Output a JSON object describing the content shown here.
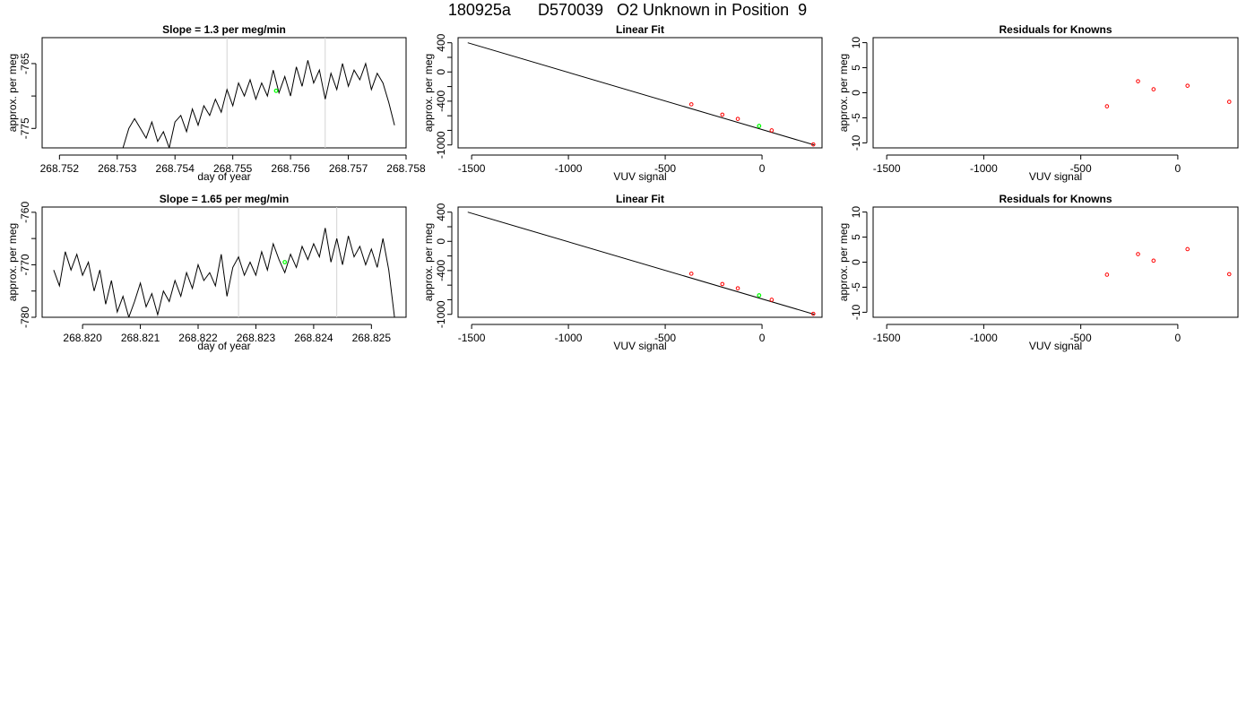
{
  "header": {
    "title": "180925a      D570039   O2 Unknown in Position  9"
  },
  "colors": {
    "line": "#000000",
    "known_points": "#ff0000",
    "unknown_point": "#00ff00",
    "marker_lines": "#d3d3d3"
  },
  "chart_data": [
    {
      "type": "line",
      "title": "Slope =  1.3  per meg/min",
      "xlabel": "day of year",
      "ylabel": "approx. per meg",
      "xlim": [
        268.7517,
        268.758
      ],
      "ylim": [
        -778,
        -761
      ],
      "x_ticks": [
        268.752,
        268.753,
        268.754,
        268.755,
        268.756,
        268.757,
        268.758
      ],
      "x_tick_labels": [
        "268.752",
        "268.753",
        "268.754",
        "268.755",
        "268.756",
        "268.757",
        "268.758"
      ],
      "y_ticks": [
        -765,
        -775
      ],
      "y_tick_labels": [
        "-765",
        "-775"
      ],
      "y_minor_ticks": [
        -770
      ],
      "vertical_markers": [
        268.7549,
        268.7566
      ],
      "series": [
        {
          "x": [
            268.7531,
            268.7532,
            268.7533,
            268.7534,
            268.7535,
            268.7536,
            268.7537,
            268.7538,
            268.7539,
            268.754,
            268.7541,
            268.7542,
            268.7543,
            268.7544,
            268.7545,
            268.7546,
            268.7547,
            268.7548,
            268.7549,
            268.755,
            268.7551,
            268.7552,
            268.7553,
            268.7554,
            268.7555,
            268.7556,
            268.7557,
            268.7558,
            268.7559,
            268.756,
            268.7561,
            268.7562,
            268.7563,
            268.7564,
            268.7565,
            268.7566,
            268.7567,
            268.7568,
            268.7569,
            268.757,
            268.7571,
            268.7572,
            268.7573,
            268.7574,
            268.7575,
            268.7576,
            268.7577,
            268.7578
          ],
          "y": [
            -778,
            -775,
            -773.5,
            -775,
            -776.5,
            -774,
            -777,
            -775.5,
            -778,
            -774,
            -773,
            -775.5,
            -772,
            -774.5,
            -771.5,
            -773,
            -770.5,
            -772.5,
            -769,
            -771.5,
            -768,
            -770,
            -767.5,
            -770.5,
            -768,
            -770,
            -766,
            -769.5,
            -767,
            -770,
            -765.5,
            -768.5,
            -764.5,
            -768,
            -766,
            -770.5,
            -766.5,
            -769,
            -765,
            -768.5,
            -766,
            -767.5,
            -765,
            -769,
            -766.5,
            -768,
            -771,
            -774.5
          ]
        }
      ],
      "unknown_point": {
        "x": 268.75575,
        "y": -769.2
      }
    },
    {
      "type": "scatter",
      "title": "Linear Fit",
      "xlabel": "VUV signal",
      "ylabel": "approx. per meg",
      "xlim": [
        -1570,
        310
      ],
      "ylim": [
        -1040,
        470
      ],
      "x_ticks": [
        -1500,
        -1000,
        -500,
        0
      ],
      "x_tick_labels": [
        "-1500",
        "-1000",
        "-500",
        "0"
      ],
      "y_ticks": [
        400,
        0,
        -400,
        -1000
      ],
      "y_tick_labels": [
        "400",
        "0",
        "-400",
        "-1000"
      ],
      "y_minor_ticks": [
        200,
        -200,
        -600,
        -800
      ],
      "fit_line": {
        "x": [
          -1520,
          270
        ],
        "y": [
          400,
          -1000
        ]
      },
      "known_points": {
        "x": [
          -365,
          -205,
          -125,
          50,
          265
        ],
        "y": [
          -443,
          -585,
          -643,
          -800,
          -993
        ]
      },
      "unknown_point": {
        "x": -15,
        "y": -740
      }
    },
    {
      "type": "scatter",
      "title": "Residuals for Knowns",
      "xlabel": "VUV signal",
      "ylabel": "approx. per meg",
      "xlim": [
        -1570,
        310
      ],
      "ylim": [
        -11,
        11
      ],
      "x_ticks": [
        -1500,
        -1000,
        -500,
        0
      ],
      "x_tick_labels": [
        "-1500",
        "-1000",
        "-500",
        "0"
      ],
      "y_ticks": [
        10,
        5,
        0,
        -5,
        -10
      ],
      "y_tick_labels": [
        "10",
        "5",
        "0",
        "-5",
        "-10"
      ],
      "points": {
        "x": [
          -365,
          -205,
          -125,
          50,
          265
        ],
        "y": [
          -2.7,
          2.3,
          0.7,
          1.4,
          -1.8
        ]
      }
    },
    {
      "type": "line",
      "title": "Slope =  1.65  per meg/min",
      "xlabel": "day of year",
      "ylabel": "approx. per meg",
      "xlim": [
        268.8193,
        268.8256
      ],
      "ylim": [
        -780,
        -759
      ],
      "x_ticks": [
        268.82,
        268.821,
        268.822,
        268.823,
        268.824,
        268.825
      ],
      "x_tick_labels": [
        "268.820",
        "268.821",
        "268.822",
        "268.823",
        "268.824",
        "268.825"
      ],
      "y_ticks": [
        -760,
        -770,
        -780
      ],
      "y_tick_labels": [
        "-760",
        "-770",
        "-780"
      ],
      "y_minor_ticks": [
        -765,
        -775
      ],
      "vertical_markers": [
        268.8227,
        268.8244
      ],
      "series": [
        {
          "x": [
            268.8195,
            268.8196,
            268.8197,
            268.8198,
            268.8199,
            268.82,
            268.8201,
            268.8202,
            268.8203,
            268.8204,
            268.8205,
            268.8206,
            268.8207,
            268.8208,
            268.8209,
            268.821,
            268.8211,
            268.8212,
            268.8213,
            268.8214,
            268.8215,
            268.8216,
            268.8217,
            268.8218,
            268.8219,
            268.822,
            268.8221,
            268.8222,
            268.8223,
            268.8224,
            268.8225,
            268.8226,
            268.8227,
            268.8228,
            268.8229,
            268.823,
            268.8231,
            268.8232,
            268.8233,
            268.8234,
            268.8235,
            268.8236,
            268.8237,
            268.8238,
            268.8239,
            268.824,
            268.8241,
            268.8242,
            268.8243,
            268.8244,
            268.8245,
            268.8246,
            268.8247,
            268.8248,
            268.8249,
            268.825,
            268.8251,
            268.8252,
            268.8253,
            268.8254
          ],
          "y": [
            -771,
            -774,
            -767.5,
            -771,
            -768,
            -772,
            -769.5,
            -775,
            -771,
            -777.5,
            -773,
            -779,
            -776,
            -780,
            -777,
            -773.5,
            -778,
            -775.5,
            -779.5,
            -775,
            -777,
            -773,
            -776,
            -771.5,
            -774.5,
            -770,
            -773,
            -771.5,
            -774,
            -768,
            -776,
            -770.5,
            -768.5,
            -772,
            -769.5,
            -772,
            -767.5,
            -771,
            -766,
            -769,
            -771.5,
            -768,
            -770.5,
            -766.5,
            -769,
            -766,
            -768.5,
            -763,
            -769.5,
            -765,
            -770,
            -764.5,
            -768.5,
            -766.5,
            -770,
            -767,
            -770.5,
            -765,
            -771,
            -780
          ]
        }
      ],
      "unknown_point": {
        "x": 268.8235,
        "y": -769.5
      }
    },
    {
      "type": "scatter",
      "title": "Linear Fit",
      "xlabel": "VUV signal",
      "ylabel": "approx. per meg",
      "xlim": [
        -1570,
        310
      ],
      "ylim": [
        -1040,
        470
      ],
      "x_ticks": [
        -1500,
        -1000,
        -500,
        0
      ],
      "x_tick_labels": [
        "-1500",
        "-1000",
        "-500",
        "0"
      ],
      "y_ticks": [
        400,
        0,
        -400,
        -1000
      ],
      "y_tick_labels": [
        "400",
        "0",
        "-400",
        "-1000"
      ],
      "y_minor_ticks": [
        200,
        -200,
        -600,
        -800
      ],
      "fit_line": {
        "x": [
          -1520,
          270
        ],
        "y": [
          400,
          -1000
        ]
      },
      "known_points": {
        "x": [
          -365,
          -205,
          -125,
          50,
          265
        ],
        "y": [
          -443,
          -585,
          -643,
          -800,
          -993
        ]
      },
      "unknown_point": {
        "x": -15,
        "y": -740
      }
    },
    {
      "type": "scatter",
      "title": "Residuals for Knowns",
      "xlabel": "VUV signal",
      "ylabel": "approx. per meg",
      "xlim": [
        -1570,
        310
      ],
      "ylim": [
        -11,
        11
      ],
      "x_ticks": [
        -1500,
        -1000,
        -500,
        0
      ],
      "x_tick_labels": [
        "-1500",
        "-1000",
        "-500",
        "0"
      ],
      "y_ticks": [
        10,
        5,
        0,
        -5,
        -10
      ],
      "y_tick_labels": [
        "10",
        "5",
        "0",
        "-5",
        "-10"
      ],
      "points": {
        "x": [
          -365,
          -205,
          -125,
          50,
          265
        ],
        "y": [
          -2.5,
          1.6,
          0.3,
          2.6,
          -2.4
        ]
      }
    }
  ]
}
